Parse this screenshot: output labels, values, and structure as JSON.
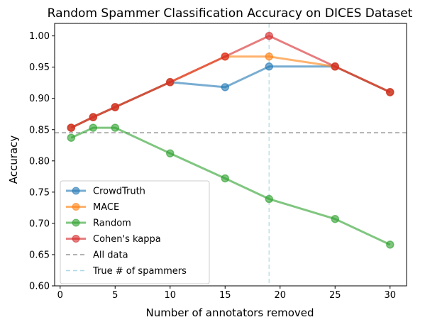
{
  "chart_data": {
    "type": "line",
    "title": "Random Spammer Classification Accuracy on DICES Dataset",
    "xlabel": "Number of annotators removed",
    "ylabel": "Accuracy",
    "xlim": [
      -0.5,
      31.5
    ],
    "ylim": [
      0.6,
      1.02
    ],
    "xticks": [
      0,
      5,
      10,
      15,
      20,
      25,
      30
    ],
    "yticks": [
      0.6,
      0.65,
      0.7,
      0.75,
      0.8,
      0.85,
      0.9,
      0.95,
      1.0
    ],
    "ytick_labels": [
      "0.60",
      "0.65",
      "0.70",
      "0.75",
      "0.80",
      "0.85",
      "0.90",
      "0.95",
      "1.00"
    ],
    "grid": false,
    "legend_position": "lower-left",
    "series": [
      {
        "name": "CrowdTruth",
        "color": "#1f77b4",
        "x": [
          1,
          3,
          5,
          10,
          15,
          19,
          25,
          30
        ],
        "values": [
          0.853,
          0.87,
          0.886,
          0.926,
          0.918,
          0.951,
          0.951,
          0.91
        ]
      },
      {
        "name": "MACE",
        "color": "#ff7f0e",
        "x": [
          1,
          3,
          5,
          10,
          15,
          19,
          25,
          30
        ],
        "values": [
          0.853,
          0.87,
          0.886,
          0.926,
          0.967,
          0.967,
          0.951,
          0.91
        ]
      },
      {
        "name": "Random",
        "color": "#2ca02c",
        "x": [
          1,
          3,
          5,
          10,
          15,
          19,
          25,
          30
        ],
        "values": [
          0.837,
          0.853,
          0.853,
          0.812,
          0.772,
          0.739,
          0.707,
          0.666
        ]
      },
      {
        "name": "Cohen's kappa",
        "color": "#d62728",
        "x": [
          1,
          3,
          5,
          10,
          15,
          19,
          25,
          30
        ],
        "values": [
          0.853,
          0.87,
          0.886,
          0.926,
          0.967,
          1.0,
          0.951,
          0.91
        ]
      }
    ],
    "reference_lines": [
      {
        "name": "All data",
        "orientation": "horizontal",
        "value": 0.845,
        "color": "#999999"
      },
      {
        "name": "True # of spammers",
        "orientation": "vertical",
        "value": 19,
        "color": "#add8e6"
      }
    ]
  }
}
